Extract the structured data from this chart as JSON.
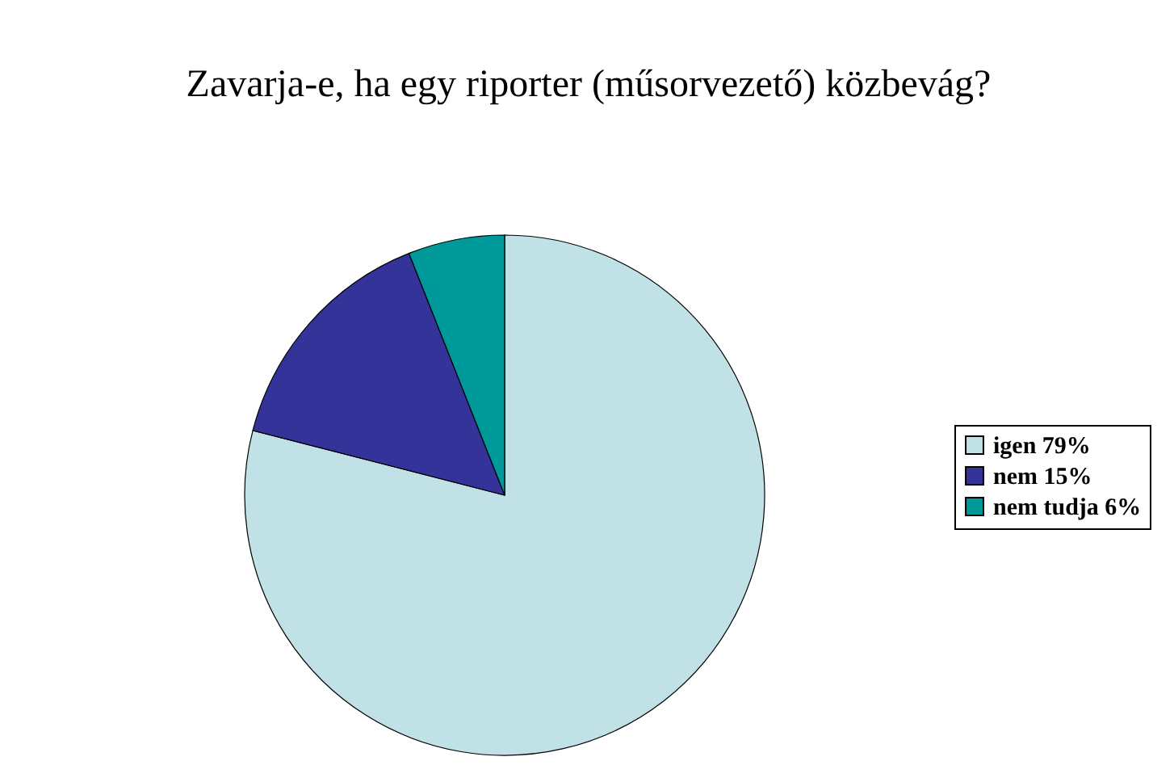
{
  "chart_data": {
    "type": "pie",
    "title": "Zavarja-e, ha egy riporter (műsorvezető) közbevág?",
    "categories": [
      "igen 79%",
      "nem 15%",
      "nem tudja 6%"
    ],
    "values": [
      79,
      15,
      6
    ],
    "colors": [
      "#c0e2e6",
      "#333399",
      "#009999"
    ],
    "legend": "right"
  }
}
